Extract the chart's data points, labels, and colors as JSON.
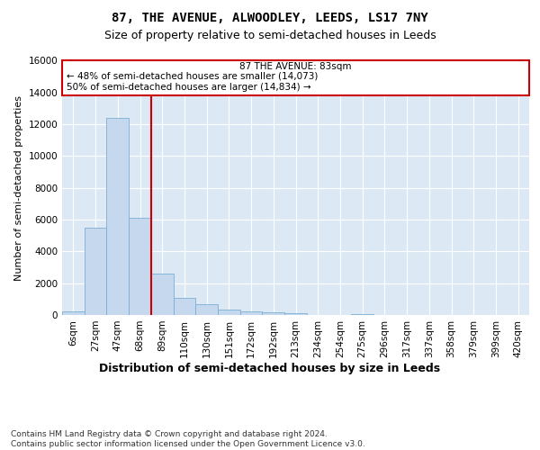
{
  "title": "87, THE AVENUE, ALWOODLEY, LEEDS, LS17 7NY",
  "subtitle": "Size of property relative to semi-detached houses in Leeds",
  "xlabel": "Distribution of semi-detached houses by size in Leeds",
  "ylabel": "Number of semi-detached properties",
  "property_label": "87 THE AVENUE: 83sqm",
  "pct_smaller": 48,
  "count_smaller": 14073,
  "pct_larger": 50,
  "count_larger": 14834,
  "bar_categories": [
    "6sqm",
    "27sqm",
    "47sqm",
    "68sqm",
    "89sqm",
    "110sqm",
    "130sqm",
    "151sqm",
    "172sqm",
    "192sqm",
    "213sqm",
    "234sqm",
    "254sqm",
    "275sqm",
    "296sqm",
    "317sqm",
    "337sqm",
    "358sqm",
    "379sqm",
    "399sqm",
    "420sqm"
  ],
  "bar_values": [
    200,
    5500,
    12400,
    6100,
    2600,
    1050,
    700,
    350,
    200,
    150,
    100,
    0,
    0,
    50,
    0,
    0,
    0,
    0,
    0,
    0,
    0
  ],
  "bar_color": "#c5d8ed",
  "bar_edge_color": "#7aafd4",
  "vline_color": "#cc0000",
  "vline_x_index": 4,
  "ylim": [
    0,
    16000
  ],
  "yticks": [
    0,
    2000,
    4000,
    6000,
    8000,
    10000,
    12000,
    14000,
    16000
  ],
  "box_color": "#ffffff",
  "box_edge_color": "#cc0000",
  "footer": "Contains HM Land Registry data © Crown copyright and database right 2024.\nContains public sector information licensed under the Open Government Licence v3.0.",
  "background_color": "#dce9f5",
  "fig_background": "#ffffff",
  "title_fontsize": 10,
  "subtitle_fontsize": 9,
  "ylabel_fontsize": 8,
  "tick_fontsize": 7.5,
  "annotation_fontsize": 7.5,
  "xlabel_fontsize": 9,
  "footer_fontsize": 6.5
}
